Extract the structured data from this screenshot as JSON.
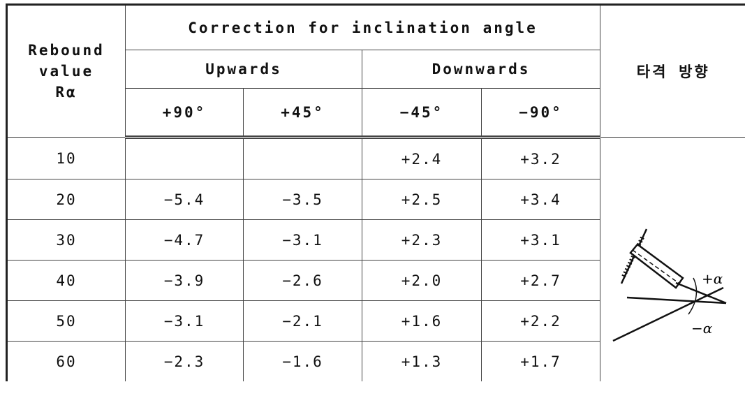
{
  "table": {
    "header": {
      "rebound": [
        "Rebound",
        "value",
        "Rα"
      ],
      "correction": "Correction for inclination angle",
      "groups": [
        "Upwards",
        "Downwards"
      ],
      "angles": [
        "+90°",
        "+45°",
        "−45°",
        "−90°"
      ],
      "direction": "타격 방향"
    },
    "rows": [
      [
        "10",
        null,
        null,
        "+2.4",
        "+3.2"
      ],
      [
        "20",
        "−5.4",
        "−3.5",
        "+2.5",
        "+3.4"
      ],
      [
        "30",
        "−4.7",
        "−3.1",
        "+2.3",
        "+3.1"
      ],
      [
        "40",
        "−3.9",
        "−2.6",
        "+2.0",
        "+2.7"
      ],
      [
        "50",
        "−3.1",
        "−2.1",
        "+1.6",
        "+2.2"
      ],
      [
        "60",
        "−2.3",
        "−1.6",
        "+1.3",
        "+1.7"
      ]
    ],
    "figure_labels": [
      "+α",
      "−α"
    ]
  }
}
